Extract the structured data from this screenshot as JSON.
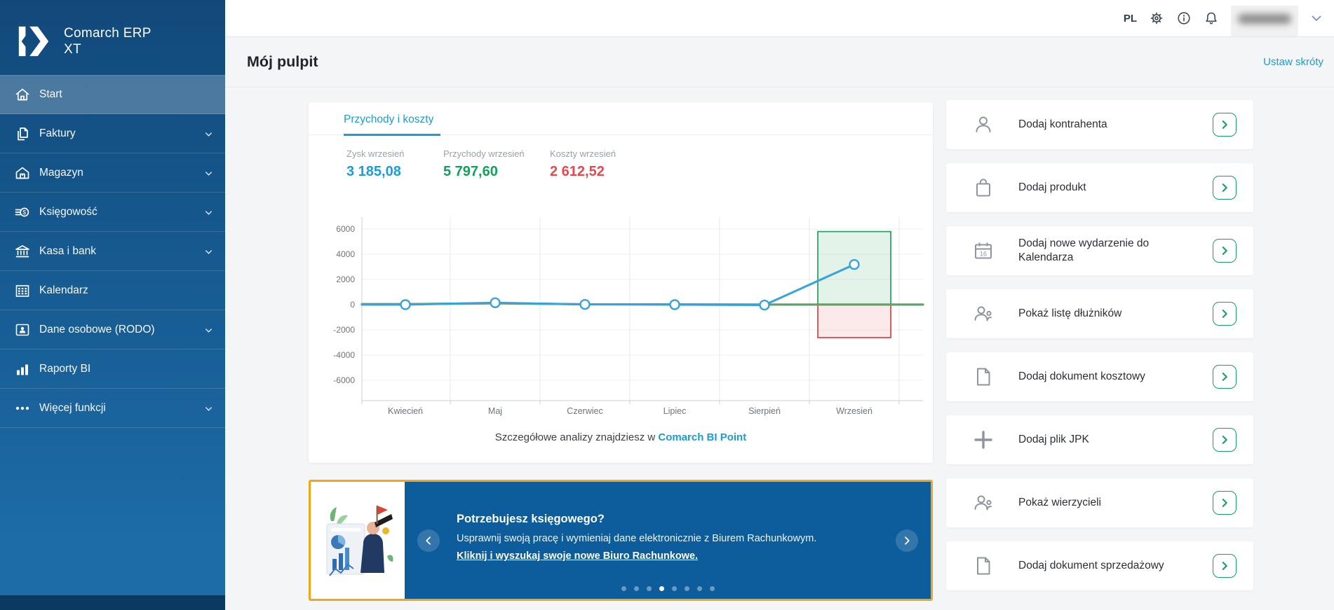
{
  "brand": {
    "line1": "Comarch ERP",
    "line2": "XT"
  },
  "topbar": {
    "language": "PL"
  },
  "header": {
    "title": "Mój pulpit",
    "shortcut_link": "Ustaw skróty"
  },
  "sidebar": {
    "items": [
      {
        "label": "Start",
        "icon": "home-icon",
        "active": true,
        "expandable": false
      },
      {
        "label": "Faktury",
        "icon": "invoice-icon",
        "active": false,
        "expandable": true
      },
      {
        "label": "Magazyn",
        "icon": "warehouse-icon",
        "active": false,
        "expandable": true
      },
      {
        "label": "Księgowość",
        "icon": "accounting-icon",
        "active": false,
        "expandable": true
      },
      {
        "label": "Kasa i bank",
        "icon": "bank-icon",
        "active": false,
        "expandable": true
      },
      {
        "label": "Kalendarz",
        "icon": "calendar-icon",
        "active": false,
        "expandable": false
      },
      {
        "label": "Dane osobowe (RODO)",
        "icon": "id-card-icon",
        "active": false,
        "expandable": true
      },
      {
        "label": "Raporty BI",
        "icon": "bar-chart-icon",
        "active": false,
        "expandable": false
      },
      {
        "label": "Więcej funkcji",
        "icon": "more-dots-icon",
        "active": false,
        "expandable": true
      }
    ]
  },
  "chart_card": {
    "tab_label": "Przychody i koszty",
    "stats": [
      {
        "label": "Zysk wrzesień",
        "value": "3 185,08",
        "color": "#1b9dd9"
      },
      {
        "label": "Przychody wrzesień",
        "value": "5 797,60",
        "color": "#0fa25b"
      },
      {
        "label": "Koszty wrzesień",
        "value": "2 612,52",
        "color": "#e8484b"
      }
    ],
    "footer": {
      "text": "Szczegółowe analizy znajdziesz w",
      "link": "Comarch BI Point"
    },
    "chart_data": {
      "type": "line",
      "categories": [
        "Kwiecień",
        "Maj",
        "Czerwiec",
        "Lipiec",
        "Sierpień",
        "Wrzesień"
      ],
      "series": [
        {
          "name": "Zysk",
          "color": "#36a3dc",
          "values": [
            0,
            150,
            20,
            0,
            -30,
            3185.08
          ]
        },
        {
          "name": "Przychody",
          "color": "#57a664",
          "values": [
            40,
            120,
            30,
            20,
            10,
            5797.6
          ]
        },
        {
          "name": "Koszty",
          "color": "#e14b4c",
          "values": [
            40,
            110,
            30,
            20,
            10,
            2612.52
          ]
        }
      ],
      "ylim": [
        -7600,
        7600
      ],
      "ytick_step": 2000,
      "yticks": [
        6000,
        4000,
        2000,
        0,
        -2000,
        -4000,
        -6000
      ],
      "grid": true,
      "legend": "none",
      "highlight_box": {
        "category": "Wrzesień",
        "top": 5797.6,
        "bottom": -2612.52,
        "top_color": "#2ea56a",
        "bottom_color": "#e04b4b"
      }
    }
  },
  "banner": {
    "title": "Potrzebujesz księgowego?",
    "line1": "Usprawnij swoją pracę i wymieniaj dane elektronicznie z Biurem Rachunkowym.",
    "link": "Kliknij i wyszukaj swoje nowe Biuro Rachunkowe.",
    "dots": {
      "count": 8,
      "active_index": 3
    },
    "colors": {
      "background": "#0d5c9b",
      "border": "#f2a516"
    }
  },
  "quick_actions": [
    {
      "label": "Dodaj kontrahenta",
      "icon": "add-contractor-icon"
    },
    {
      "label": "Dodaj produkt",
      "icon": "add-product-icon"
    },
    {
      "label": "Dodaj nowe wydarzenie do Kalendarza",
      "icon": "calendar-event-icon"
    },
    {
      "label": "Pokaż listę dłużników",
      "icon": "debtors-icon"
    },
    {
      "label": "Dodaj dokument kosztowy",
      "icon": "cost-document-icon"
    },
    {
      "label": "Dodaj plik JPK",
      "icon": "plus-icon"
    },
    {
      "label": "Pokaż wierzycieli",
      "icon": "creditors-icon"
    },
    {
      "label": "Dodaj dokument sprzedażowy",
      "icon": "sales-document-icon"
    }
  ]
}
